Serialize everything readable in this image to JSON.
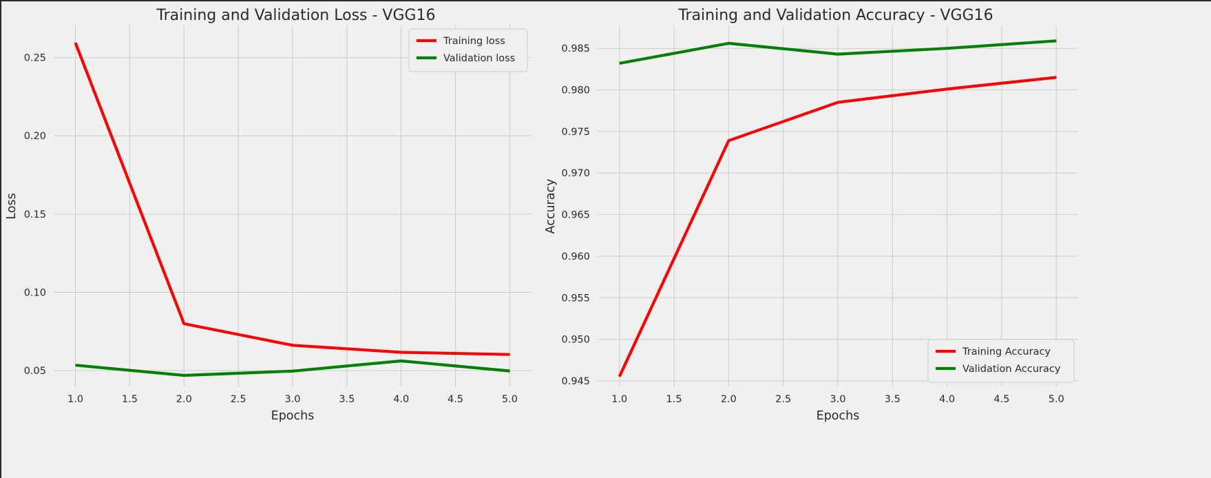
{
  "colors": {
    "background": "#f0f0f0",
    "grid": "#cbcbcb",
    "text": "#2a2a2a",
    "training": "#ff0000",
    "validation": "#008000"
  },
  "chart_data": [
    {
      "type": "line",
      "title": "Training and Validation Loss - VGG16",
      "xlabel": "Epochs",
      "ylabel": "Loss",
      "x": [
        1,
        2,
        3,
        4,
        5
      ],
      "xlim": [
        0.8,
        5.2
      ],
      "ylim": [
        0.0395,
        0.2705
      ],
      "xticks": [
        1.0,
        1.5,
        2.0,
        2.5,
        3.0,
        3.5,
        4.0,
        4.5,
        5.0
      ],
      "xtick_labels": [
        "1.0",
        "1.5",
        "2.0",
        "2.5",
        "3.0",
        "3.5",
        "4.0",
        "4.5",
        "5.0"
      ],
      "yticks": [
        0.05,
        0.1,
        0.15,
        0.2,
        0.25
      ],
      "ytick_labels": [
        "0.05",
        "0.10",
        "0.15",
        "0.20",
        "0.25"
      ],
      "grid": true,
      "legend_position": "top-right",
      "series": [
        {
          "name": "Training loss",
          "color": "#ff0000",
          "values": [
            0.2595,
            0.08,
            0.0662,
            0.0617,
            0.0603
          ]
        },
        {
          "name": "Validation loss",
          "color": "#008000",
          "values": [
            0.0535,
            0.047,
            0.0497,
            0.0562,
            0.0498
          ]
        }
      ]
    },
    {
      "type": "line",
      "title": "Training and Validation Accuracy - VGG16",
      "xlabel": "Epochs",
      "ylabel": "Accuracy",
      "x": [
        1,
        2,
        3,
        4,
        5
      ],
      "xlim": [
        0.8,
        5.2
      ],
      "ylim": [
        0.94425,
        0.98775
      ],
      "xticks": [
        1.0,
        1.5,
        2.0,
        2.5,
        3.0,
        3.5,
        4.0,
        4.5,
        5.0
      ],
      "xtick_labels": [
        "1.0",
        "1.5",
        "2.0",
        "2.5",
        "3.0",
        "3.5",
        "4.0",
        "4.5",
        "5.0"
      ],
      "yticks": [
        0.945,
        0.95,
        0.955,
        0.96,
        0.965,
        0.97,
        0.975,
        0.98,
        0.985
      ],
      "ytick_labels": [
        "0.945",
        "0.950",
        "0.955",
        "0.960",
        "0.965",
        "0.970",
        "0.975",
        "0.980",
        "0.985"
      ],
      "grid": true,
      "legend_position": "bottom-right",
      "series": [
        {
          "name": "Training Accuracy",
          "color": "#ff0000",
          "values": [
            0.9455,
            0.9739,
            0.9785,
            0.9801,
            0.9815
          ]
        },
        {
          "name": "Validation Accuracy",
          "color": "#008000",
          "values": [
            0.9832,
            0.9856,
            0.9843,
            0.985,
            0.9859
          ]
        }
      ]
    }
  ]
}
